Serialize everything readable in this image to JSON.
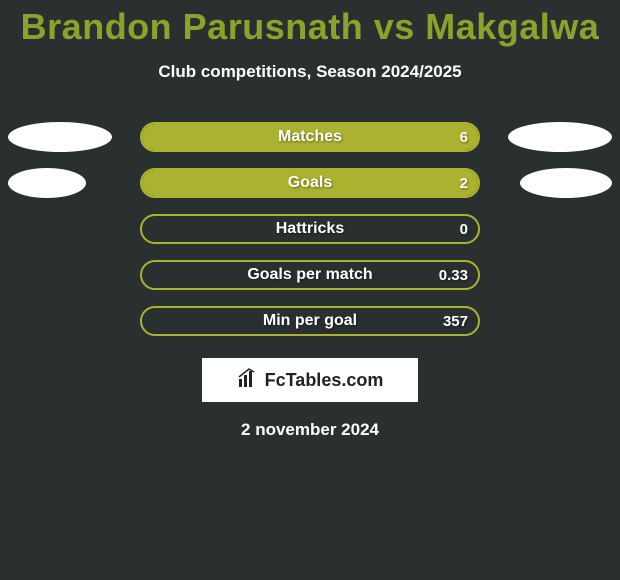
{
  "title": "Brandon Parusnath vs Makgalwa",
  "subtitle": "Club competitions, Season 2024/2025",
  "footer_date": "2 november 2024",
  "brand_text": "FcTables.com",
  "colors": {
    "background": "#2a3030",
    "accent": "#8aa32b",
    "bar_fill": "#aab22f",
    "bar_border": "#aab22f",
    "text": "#ffffff",
    "ellipse": "#ffffff",
    "brand_box": "#ffffff",
    "brand_text": "#222222"
  },
  "typography": {
    "title_fontsize": 36,
    "subtitle_fontsize": 17,
    "stat_label_fontsize": 16,
    "stat_value_fontsize": 15,
    "footer_fontsize": 17,
    "brand_fontsize": 18
  },
  "layout": {
    "bar_container_width": 340,
    "bar_container_height": 30,
    "bar_border_radius": 16,
    "row_gap": 16
  },
  "stats": [
    {
      "label": "Matches",
      "value": "6",
      "fill_pct": 100,
      "left_ellipse_w": 104,
      "right_ellipse_w": 104
    },
    {
      "label": "Goals",
      "value": "2",
      "fill_pct": 100,
      "left_ellipse_w": 78,
      "right_ellipse_w": 92
    },
    {
      "label": "Hattricks",
      "value": "0",
      "fill_pct": 0,
      "left_ellipse_w": 0,
      "right_ellipse_w": 0
    },
    {
      "label": "Goals per match",
      "value": "0.33",
      "fill_pct": 0,
      "left_ellipse_w": 0,
      "right_ellipse_w": 0
    },
    {
      "label": "Min per goal",
      "value": "357",
      "fill_pct": 0,
      "left_ellipse_w": 0,
      "right_ellipse_w": 0
    }
  ]
}
